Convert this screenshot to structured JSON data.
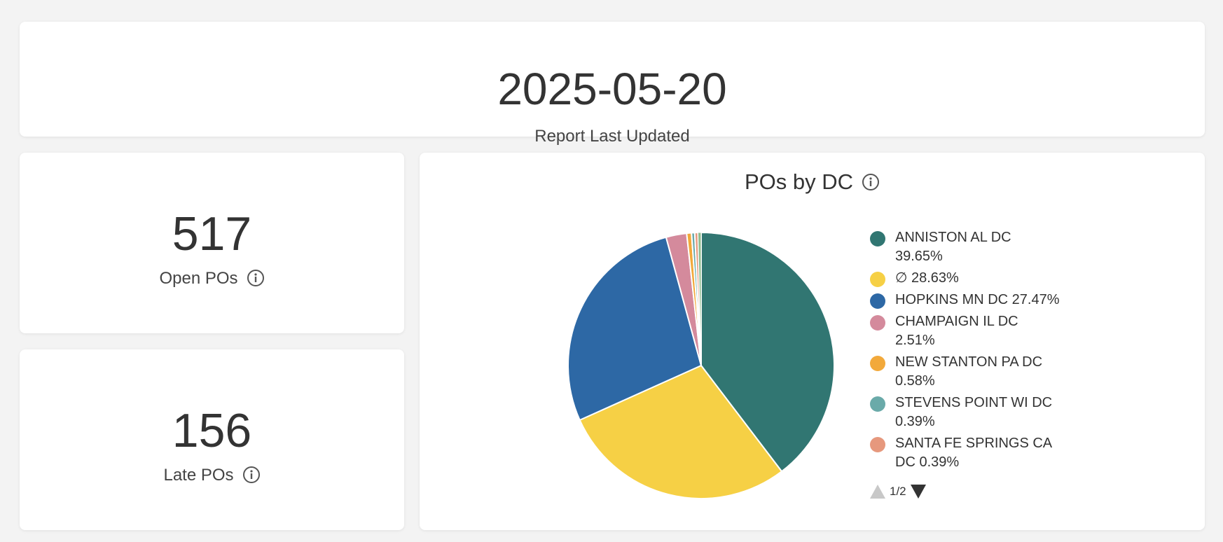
{
  "header": {
    "date": "2025-05-20",
    "label": "Report Last Updated"
  },
  "open_pos": {
    "value": "517",
    "label": "Open POs"
  },
  "late_pos": {
    "value": "156",
    "label": "Late POs"
  },
  "pager": {
    "text": "1/2"
  },
  "colors": {
    "slices": [
      "#317672",
      "#f6d045",
      "#2d68a5",
      "#d48a9c",
      "#f2a93b",
      "#6aaaa9",
      "#e6987d",
      "#8fbc8f",
      "#b0b0b0",
      "#c5a3d9"
    ]
  },
  "chart_data": {
    "type": "pie",
    "title": "POs by DC",
    "legend_position": "right",
    "slices": [
      {
        "name": "ANNISTON AL DC",
        "value": 39.65,
        "label": "39.65%"
      },
      {
        "name": "∅",
        "value": 28.63,
        "label": "28.63%"
      },
      {
        "name": "HOPKINS MN DC",
        "value": 27.47,
        "label": "27.47%"
      },
      {
        "name": "CHAMPAIGN IL DC",
        "value": 2.51,
        "label": "2.51%"
      },
      {
        "name": "NEW STANTON PA DC",
        "value": 0.58,
        "label": "0.58%"
      },
      {
        "name": "STEVENS POINT WI DC",
        "value": 0.39,
        "label": "0.39%"
      },
      {
        "name": "SANTA FE SPRINGS CA DC",
        "value": 0.39,
        "label": "0.39%"
      }
    ],
    "remainder_value": 0.38
  }
}
